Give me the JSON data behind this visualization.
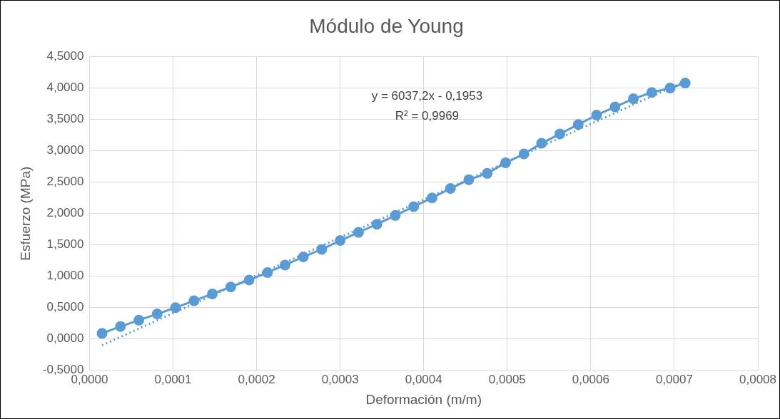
{
  "chart_data": {
    "type": "line",
    "title": "Módulo de Young",
    "xlabel": "Deformación (m/m)",
    "ylabel": "Esfuerzo (MPa)",
    "annotations": [
      "y = 6037,2x - 0,1953",
      "R² = 0,9969"
    ],
    "xlim": [
      0,
      0.0008
    ],
    "ylim": [
      -0.5,
      4.5
    ],
    "xticks": [
      {
        "value": 0,
        "label": "0,0000"
      },
      {
        "value": 0.0001,
        "label": "0,0001"
      },
      {
        "value": 0.0002,
        "label": "0,0002"
      },
      {
        "value": 0.0003,
        "label": "0,0003"
      },
      {
        "value": 0.0004,
        "label": "0,0004"
      },
      {
        "value": 0.0005,
        "label": "0,0005"
      },
      {
        "value": 0.0006,
        "label": "0,0006"
      },
      {
        "value": 0.0007,
        "label": "0,0007"
      },
      {
        "value": 0.0008,
        "label": "0,0008"
      }
    ],
    "yticks": [
      {
        "value": -0.5,
        "label": "-0,5000"
      },
      {
        "value": 0,
        "label": "0,0000"
      },
      {
        "value": 0.5,
        "label": "0,5000"
      },
      {
        "value": 1,
        "label": "1,0000"
      },
      {
        "value": 1.5,
        "label": "1,5000"
      },
      {
        "value": 2,
        "label": "2,0000"
      },
      {
        "value": 2.5,
        "label": "2,5000"
      },
      {
        "value": 3,
        "label": "3,0000"
      },
      {
        "value": 3.5,
        "label": "3,5000"
      },
      {
        "value": 4,
        "label": "4,0000"
      },
      {
        "value": 4.5,
        "label": "4,5000"
      }
    ],
    "grid": true,
    "legend": false,
    "series": [
      {
        "type": "line",
        "color": "#5b9bd5",
        "marker": "circle",
        "line_style": "solid",
        "x": [
          1.5e-05,
          3.7e-05,
          5.9e-05,
          8.1e-05,
          0.000103,
          0.000125,
          0.000147,
          0.000169,
          0.000191,
          0.000213,
          0.000234,
          0.000256,
          0.000278,
          0.0003,
          0.000322,
          0.000344,
          0.000366,
          0.000388,
          0.00041,
          0.000432,
          0.000454,
          0.000476,
          0.000498,
          0.00052,
          0.000541,
          0.000563,
          0.000585,
          0.000607,
          0.000629,
          0.000651,
          0.000673,
          0.000695,
          0.000713
        ],
        "values": [
          0.09,
          0.2,
          0.3,
          0.4,
          0.5,
          0.61,
          0.72,
          0.83,
          0.94,
          1.06,
          1.18,
          1.31,
          1.43,
          1.57,
          1.7,
          1.83,
          1.97,
          2.11,
          2.25,
          2.4,
          2.54,
          2.64,
          2.81,
          2.95,
          3.12,
          3.27,
          3.42,
          3.57,
          3.7,
          3.83,
          3.93,
          4.0,
          4.08
        ]
      },
      {
        "type": "line",
        "color": "#5b9bd5",
        "marker": "none",
        "line_style": "dotted",
        "x": [
          1.5e-05,
          0.000713
        ],
        "values": [
          -0.1,
          4.11
        ]
      }
    ]
  }
}
